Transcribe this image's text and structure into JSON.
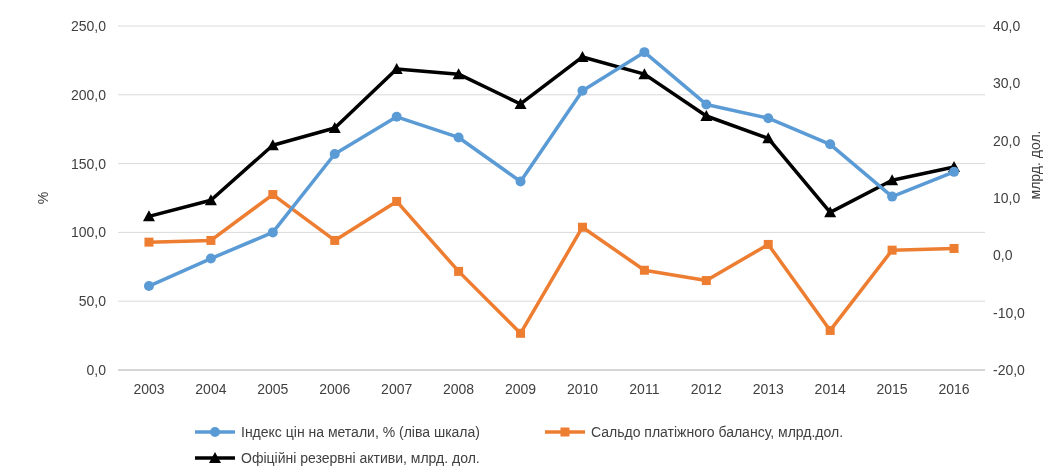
{
  "chart_data": {
    "type": "line",
    "ylabel": "%",
    "y2label": "млрд. дол.",
    "categories": [
      "2003",
      "2004",
      "2005",
      "2006",
      "2007",
      "2008",
      "2009",
      "2010",
      "2011",
      "2012",
      "2013",
      "2014",
      "2015",
      "2016"
    ],
    "series": [
      {
        "name": "Індекс цін на метали, % (ліва шкала)",
        "color": "#5b9bd5",
        "marker": "circle",
        "values": [
          61,
          81,
          100,
          157,
          184,
          169,
          137,
          203,
          231,
          193,
          183,
          164,
          126,
          144
        ]
      },
      {
        "name": "Сальдо платіжного балансу, млрд.дол.",
        "color": "#ed7d31",
        "marker": "square",
        "axis": "y2",
        "values": [
          2.3,
          2.6,
          10.6,
          2.6,
          9.4,
          -2.8,
          -13.6,
          4.9,
          -2.6,
          -4.4,
          1.9,
          -13.1,
          0.9,
          1.2
        ]
      },
      {
        "name": "Офіційні резервні активи, млрд. дол.",
        "color": "#000000",
        "marker": "triangle",
        "axis": "y2",
        "values": [
          6.8,
          9.6,
          19.2,
          22.2,
          32.5,
          31.6,
          26.4,
          34.6,
          31.6,
          24.3,
          20.4,
          7.5,
          13.1,
          15.4
        ]
      }
    ],
    "ylim": [
      0,
      250
    ],
    "yticks": [
      {
        "value": 0,
        "label": "0,0"
      },
      {
        "value": 50,
        "label": "50,0"
      },
      {
        "value": 100,
        "label": "100,0"
      },
      {
        "value": 150,
        "label": "150,0"
      },
      {
        "value": 200,
        "label": "200,0"
      },
      {
        "value": 250,
        "label": "250,0"
      }
    ],
    "y2lim": [
      -20,
      40
    ],
    "y2ticks": [
      {
        "value": -20,
        "label": "-20,0"
      },
      {
        "value": -10,
        "label": "-10,0"
      },
      {
        "value": 0,
        "label": "0,0"
      },
      {
        "value": 10,
        "label": "10,0"
      },
      {
        "value": 20,
        "label": "20,0"
      },
      {
        "value": 30,
        "label": "30,0"
      },
      {
        "value": 40,
        "label": "40,0"
      }
    ],
    "grid": "y",
    "legend": "bottom",
    "line_style": "solid"
  }
}
